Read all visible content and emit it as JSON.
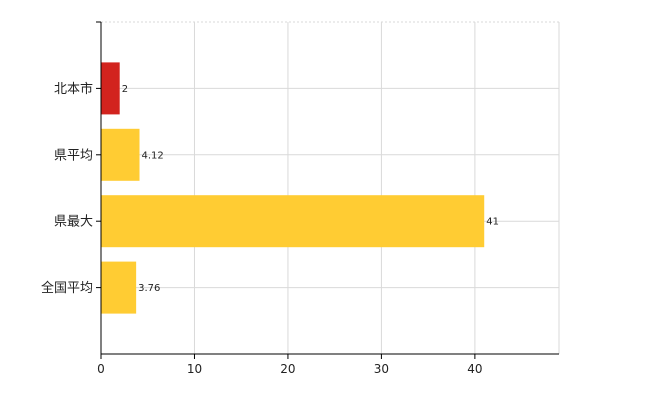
{
  "chart_data": {
    "type": "bar",
    "orientation": "horizontal",
    "title": "",
    "xlabel": "",
    "ylabel": "",
    "categories": [
      "北本市",
      "県平均",
      "県最大",
      "全国平均"
    ],
    "values": [
      2,
      4.12,
      41,
      3.76
    ],
    "data_labels": [
      "2",
      "4.12",
      "41",
      "3.76"
    ],
    "xlim": [
      0,
      49
    ],
    "xticks": [
      0,
      10,
      20,
      30,
      40
    ],
    "xtick_labels": [
      "0",
      "10",
      "20",
      "30",
      "40"
    ],
    "grid": true,
    "legend": "none",
    "colors": {
      "highlight": "#d2231e",
      "default": "#ffcc33",
      "grid": "#d9d9d9",
      "axis": "#000000"
    },
    "bar_colors": [
      "highlight",
      "default",
      "default",
      "default"
    ]
  }
}
